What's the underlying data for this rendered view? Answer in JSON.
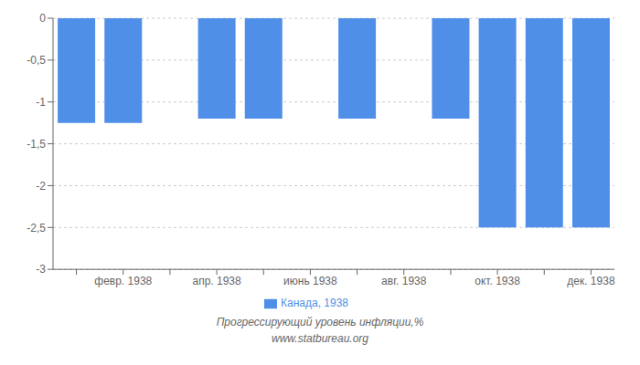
{
  "chart_data": {
    "type": "bar",
    "categories": [
      null,
      "февр. 1938",
      null,
      "апр. 1938",
      null,
      "июнь 1938",
      null,
      "авг. 1938",
      null,
      "окт. 1938",
      null,
      "дек. 1938"
    ],
    "series": [
      {
        "name": "Канада, 1938",
        "color": "#4f8fe8",
        "values": [
          -1.25,
          -1.25,
          null,
          -1.2,
          -1.2,
          null,
          -1.2,
          null,
          -1.2,
          -2.5,
          -2.5,
          -2.5
        ]
      }
    ],
    "ylim": [
      -3,
      0
    ],
    "yticks": [
      0,
      {
        "value": -0.5,
        "label": "-0,5"
      },
      -1,
      {
        "value": -1.5,
        "label": "-1,5"
      },
      -2,
      {
        "value": -2.5,
        "label": "-2,5"
      },
      -3
    ],
    "grid": true,
    "legend": "bottom",
    "annotations": [
      "Прогрессирующий уровень инфляции,%",
      "www.statbureau.org"
    ]
  }
}
